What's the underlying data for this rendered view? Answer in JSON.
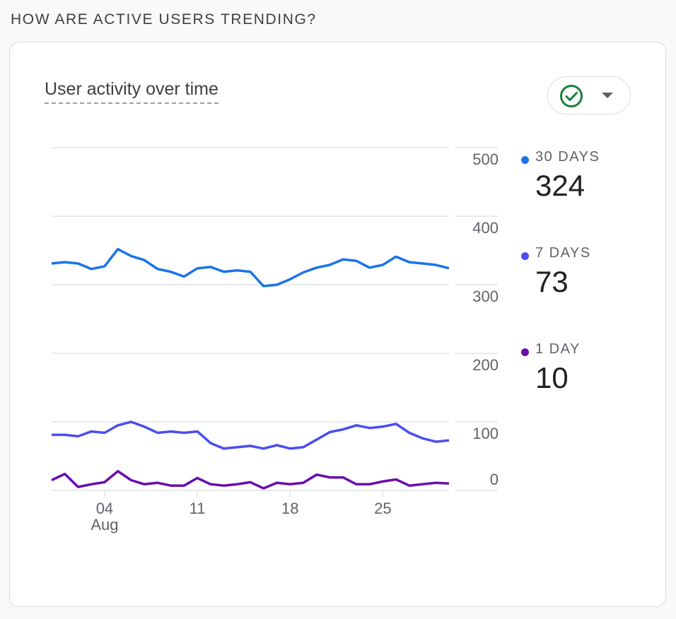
{
  "section_title": "HOW ARE ACTIVE USERS TRENDING?",
  "card": {
    "title": "User activity over time",
    "compare_button": {
      "icon": "check-circle-icon",
      "dropdown_icon": "caret-down-icon",
      "icon_color": "#188038"
    }
  },
  "legend": [
    {
      "label": "30 DAYS",
      "value": "324",
      "color": "#1a73e8"
    },
    {
      "label": "7 DAYS",
      "value": "73",
      "color": "#4b4ef0"
    },
    {
      "label": "1 DAY",
      "value": "10",
      "color": "#6a0dad"
    }
  ],
  "chart_data": {
    "type": "line",
    "title": "User activity over time",
    "xlabel": "",
    "ylabel": "",
    "ylim": [
      0,
      500
    ],
    "yticks": [
      0,
      100,
      200,
      300,
      400,
      500
    ],
    "y_axis_position": "right",
    "grid": true,
    "x": [
      "Jul 31",
      "Aug 01",
      "Aug 02",
      "Aug 03",
      "Aug 04",
      "Aug 05",
      "Aug 06",
      "Aug 07",
      "Aug 08",
      "Aug 09",
      "Aug 10",
      "Aug 11",
      "Aug 12",
      "Aug 13",
      "Aug 14",
      "Aug 15",
      "Aug 16",
      "Aug 17",
      "Aug 18",
      "Aug 19",
      "Aug 20",
      "Aug 21",
      "Aug 22",
      "Aug 23",
      "Aug 24",
      "Aug 25",
      "Aug 26",
      "Aug 27",
      "Aug 28",
      "Aug 29",
      "Aug 30"
    ],
    "xticks": [
      {
        "index": 4,
        "label": "04",
        "sublabel": "Aug"
      },
      {
        "index": 11,
        "label": "11",
        "sublabel": ""
      },
      {
        "index": 18,
        "label": "18",
        "sublabel": ""
      },
      {
        "index": 25,
        "label": "25",
        "sublabel": ""
      }
    ],
    "series": [
      {
        "name": "30 DAYS",
        "color": "#1a73e8",
        "values": [
          331,
          333,
          331,
          323,
          327,
          352,
          342,
          336,
          323,
          319,
          312,
          324,
          326,
          319,
          321,
          319,
          298,
          300,
          308,
          318,
          325,
          329,
          337,
          335,
          325,
          329,
          341,
          333,
          331,
          329,
          324
        ]
      },
      {
        "name": "7 DAYS",
        "color": "#4b4ef0",
        "values": [
          81,
          81,
          79,
          86,
          84,
          95,
          100,
          93,
          84,
          86,
          84,
          86,
          69,
          61,
          63,
          65,
          61,
          66,
          61,
          63,
          74,
          85,
          89,
          95,
          91,
          93,
          97,
          84,
          76,
          71,
          73
        ]
      },
      {
        "name": "1 DAY",
        "color": "#6a0dad",
        "values": [
          15,
          24,
          5,
          9,
          12,
          28,
          15,
          9,
          11,
          7,
          7,
          18,
          9,
          7,
          9,
          12,
          3,
          11,
          9,
          11,
          23,
          19,
          19,
          9,
          9,
          13,
          16,
          7,
          9,
          11,
          10
        ]
      }
    ],
    "legend_position": "right"
  }
}
